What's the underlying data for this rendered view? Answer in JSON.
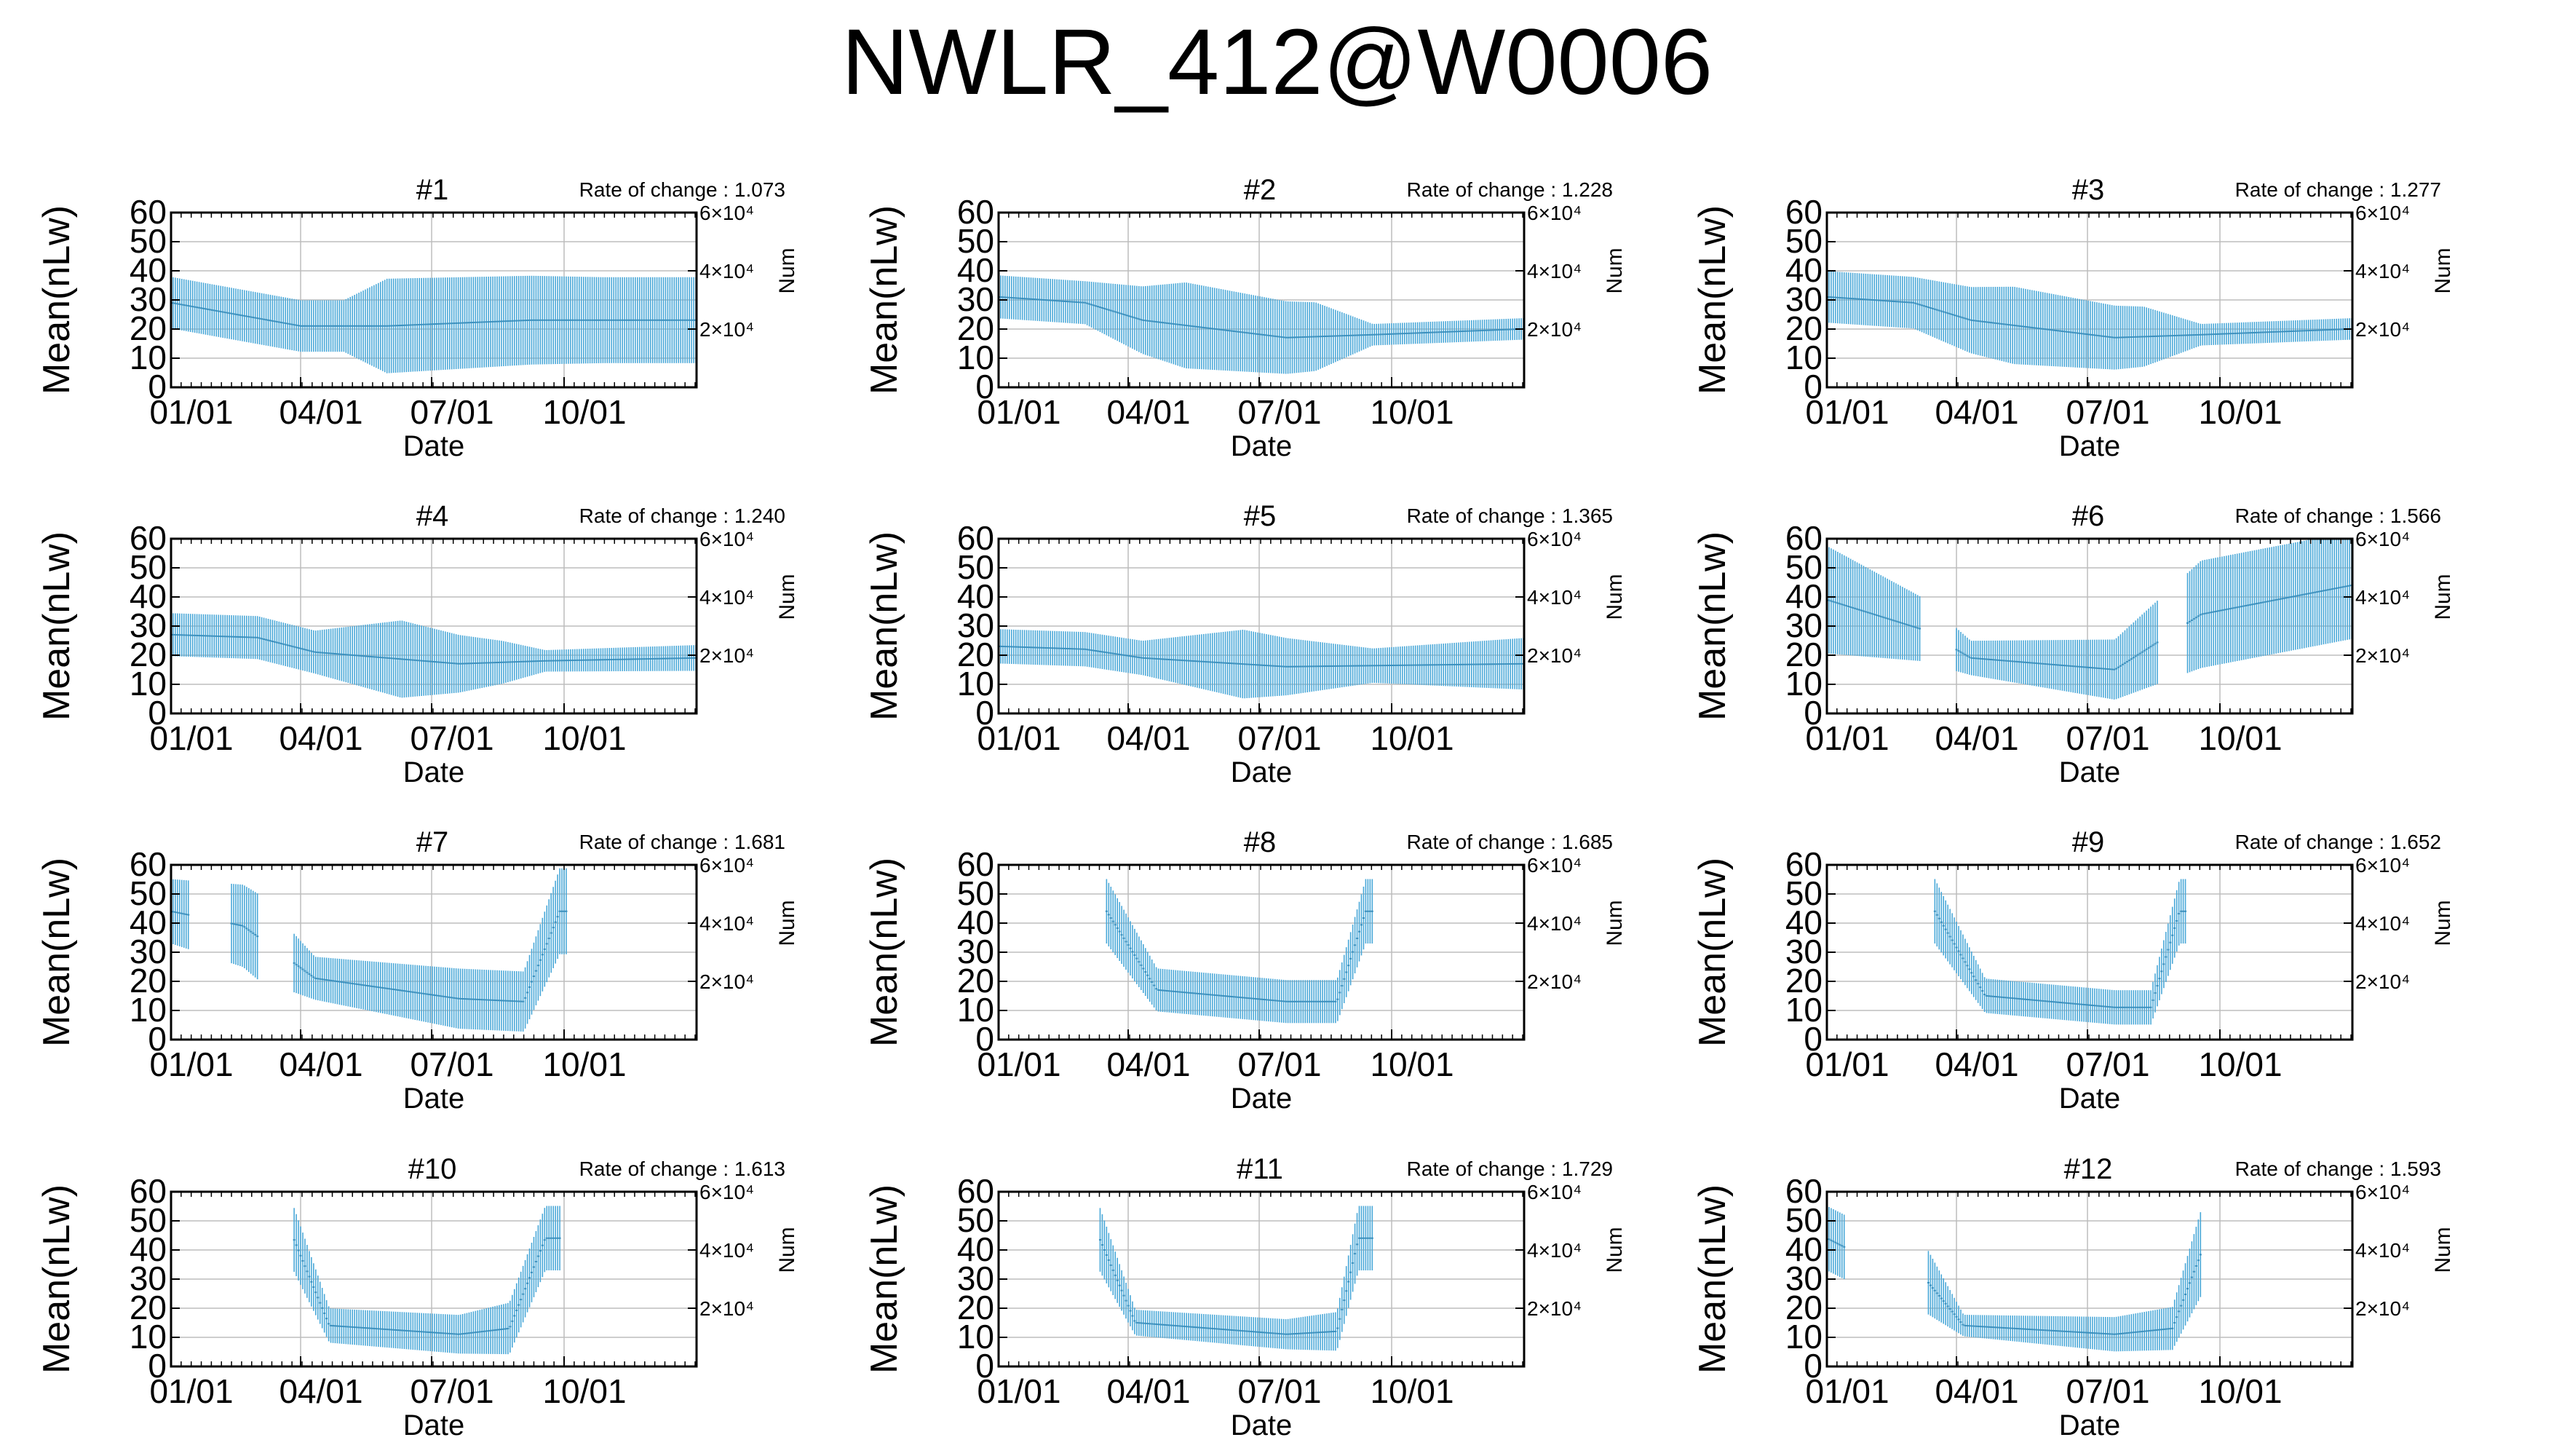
{
  "title": "NWLR_412@W0006",
  "chart_common": {
    "type": "line",
    "xlabel": "Date",
    "ylabel": "Mean(nLw)",
    "y2label": "Num",
    "xticks": [
      "01/01",
      "04/01",
      "07/01",
      "10/01"
    ],
    "xtick_days": [
      0,
      90,
      181,
      273
    ],
    "xlim_days": [
      0,
      365
    ],
    "yticks": [
      0,
      10,
      20,
      30,
      40,
      50,
      60
    ],
    "ylim": [
      0,
      60
    ],
    "y2ticks": [
      "2×10⁴",
      "4×10⁴",
      "6×10⁴"
    ],
    "y2tick_values": [
      20000,
      40000,
      60000
    ],
    "y2lim": [
      0,
      60000
    ],
    "rate_prefix": "Rate of change : ",
    "series_color": "#4aa8d8",
    "grid": true
  },
  "chart_data": [
    {
      "title": "#1",
      "rate_of_change": "1.073",
      "type": "line",
      "coverage": [
        [
          0,
          365
        ]
      ],
      "center": [
        [
          0,
          30
        ],
        [
          90,
          22
        ],
        [
          150,
          22
        ],
        [
          250,
          24
        ],
        [
          365,
          24
        ]
      ],
      "spread": [
        [
          0,
          12
        ],
        [
          120,
          12
        ],
        [
          150,
          22
        ],
        [
          300,
          20
        ],
        [
          365,
          20
        ]
      ]
    },
    {
      "title": "#2",
      "rate_of_change": "1.228",
      "type": "line",
      "coverage": [
        [
          0,
          365
        ]
      ],
      "center": [
        [
          0,
          32
        ],
        [
          60,
          30
        ],
        [
          100,
          24
        ],
        [
          200,
          18
        ],
        [
          260,
          19
        ],
        [
          365,
          21
        ]
      ],
      "spread": [
        [
          0,
          10
        ],
        [
          60,
          10
        ],
        [
          130,
          20
        ],
        [
          220,
          16
        ],
        [
          260,
          5
        ],
        [
          365,
          5
        ]
      ]
    },
    {
      "title": "#3",
      "rate_of_change": "1.277",
      "type": "line",
      "coverage": [
        [
          0,
          365
        ]
      ],
      "center": [
        [
          0,
          32
        ],
        [
          60,
          30
        ],
        [
          100,
          24
        ],
        [
          200,
          18
        ],
        [
          260,
          19
        ],
        [
          365,
          21
        ]
      ],
      "spread": [
        [
          0,
          12
        ],
        [
          60,
          12
        ],
        [
          130,
          18
        ],
        [
          220,
          14
        ],
        [
          260,
          5
        ],
        [
          365,
          5
        ]
      ]
    },
    {
      "title": "#4",
      "rate_of_change": "1.240",
      "type": "line",
      "coverage": [
        [
          0,
          365
        ]
      ],
      "center": [
        [
          0,
          28
        ],
        [
          60,
          27
        ],
        [
          100,
          22
        ],
        [
          200,
          18
        ],
        [
          260,
          19
        ],
        [
          365,
          20
        ]
      ],
      "spread": [
        [
          0,
          10
        ],
        [
          100,
          10
        ],
        [
          160,
          18
        ],
        [
          230,
          10
        ],
        [
          260,
          5
        ],
        [
          365,
          6
        ]
      ]
    },
    {
      "title": "#5",
      "rate_of_change": "1.365",
      "type": "line",
      "coverage": [
        [
          0,
          365
        ]
      ],
      "center": [
        [
          0,
          24
        ],
        [
          60,
          23
        ],
        [
          100,
          20
        ],
        [
          200,
          17
        ],
        [
          365,
          18
        ]
      ],
      "spread": [
        [
          0,
          8
        ],
        [
          100,
          8
        ],
        [
          170,
          16
        ],
        [
          260,
          8
        ],
        [
          365,
          12
        ]
      ]
    },
    {
      "title": "#6",
      "rate_of_change": "1.566",
      "type": "line",
      "coverage": [
        [
          0,
          65
        ],
        [
          90,
          230
        ],
        [
          250,
          365
        ]
      ],
      "center": [
        [
          0,
          40
        ],
        [
          65,
          30
        ],
        [
          100,
          20
        ],
        [
          200,
          16
        ],
        [
          260,
          35
        ],
        [
          365,
          45
        ]
      ],
      "spread": [
        [
          0,
          25
        ],
        [
          65,
          15
        ],
        [
          100,
          8
        ],
        [
          200,
          14
        ],
        [
          260,
          25
        ],
        [
          365,
          25
        ]
      ]
    },
    {
      "title": "#7",
      "rate_of_change": "1.681",
      "type": "line",
      "coverage": [
        [
          0,
          12
        ],
        [
          42,
          60
        ],
        [
          85,
          275
        ]
      ],
      "center": [
        [
          0,
          45
        ],
        [
          50,
          40
        ],
        [
          100,
          22
        ],
        [
          200,
          15
        ],
        [
          245,
          14
        ],
        [
          270,
          45
        ],
        [
          365,
          45
        ]
      ],
      "spread": [
        [
          0,
          15
        ],
        [
          60,
          20
        ],
        [
          100,
          10
        ],
        [
          200,
          14
        ],
        [
          245,
          14
        ],
        [
          270,
          20
        ],
        [
          365,
          20
        ]
      ]
    },
    {
      "title": "#8",
      "rate_of_change": "1.685",
      "type": "line",
      "coverage": [
        [
          75,
          260
        ]
      ],
      "center": [
        [
          75,
          45
        ],
        [
          110,
          18
        ],
        [
          200,
          14
        ],
        [
          235,
          14
        ],
        [
          255,
          45
        ],
        [
          365,
          45
        ]
      ],
      "spread": [
        [
          75,
          15
        ],
        [
          110,
          10
        ],
        [
          200,
          10
        ],
        [
          235,
          10
        ],
        [
          255,
          15
        ],
        [
          365,
          15
        ]
      ]
    },
    {
      "title": "#9",
      "rate_of_change": "1.652",
      "type": "line",
      "coverage": [
        [
          75,
          250
        ]
      ],
      "center": [
        [
          75,
          45
        ],
        [
          110,
          16
        ],
        [
          200,
          12
        ],
        [
          225,
          12
        ],
        [
          245,
          45
        ],
        [
          365,
          45
        ]
      ],
      "spread": [
        [
          75,
          15
        ],
        [
          110,
          8
        ],
        [
          200,
          8
        ],
        [
          225,
          8
        ],
        [
          245,
          15
        ],
        [
          365,
          15
        ]
      ]
    },
    {
      "title": "#10",
      "rate_of_change": "1.613",
      "type": "line",
      "coverage": [
        [
          85,
          270
        ]
      ],
      "center": [
        [
          85,
          45
        ],
        [
          110,
          15
        ],
        [
          200,
          12
        ],
        [
          235,
          14
        ],
        [
          260,
          45
        ],
        [
          365,
          45
        ]
      ],
      "spread": [
        [
          85,
          15
        ],
        [
          110,
          8
        ],
        [
          200,
          9
        ],
        [
          235,
          12
        ],
        [
          260,
          15
        ],
        [
          365,
          15
        ]
      ]
    },
    {
      "title": "#11",
      "rate_of_change": "1.729",
      "type": "line",
      "coverage": [
        [
          70,
          260
        ]
      ],
      "center": [
        [
          70,
          45
        ],
        [
          95,
          16
        ],
        [
          200,
          12
        ],
        [
          235,
          13
        ],
        [
          250,
          45
        ],
        [
          365,
          45
        ]
      ],
      "spread": [
        [
          70,
          15
        ],
        [
          95,
          6
        ],
        [
          200,
          7
        ],
        [
          235,
          9
        ],
        [
          250,
          15
        ],
        [
          365,
          15
        ]
      ]
    },
    {
      "title": "#12",
      "rate_of_change": "1.593",
      "type": "line",
      "coverage": [
        [
          0,
          12
        ],
        [
          70,
          260
        ]
      ],
      "center": [
        [
          0,
          45
        ],
        [
          20,
          40
        ],
        [
          70,
          30
        ],
        [
          95,
          15
        ],
        [
          200,
          12
        ],
        [
          240,
          14
        ],
        [
          260,
          40
        ],
        [
          365,
          45
        ]
      ],
      "spread": [
        [
          0,
          15
        ],
        [
          70,
          15
        ],
        [
          95,
          5
        ],
        [
          200,
          8
        ],
        [
          240,
          10
        ],
        [
          260,
          20
        ],
        [
          365,
          20
        ]
      ]
    }
  ]
}
